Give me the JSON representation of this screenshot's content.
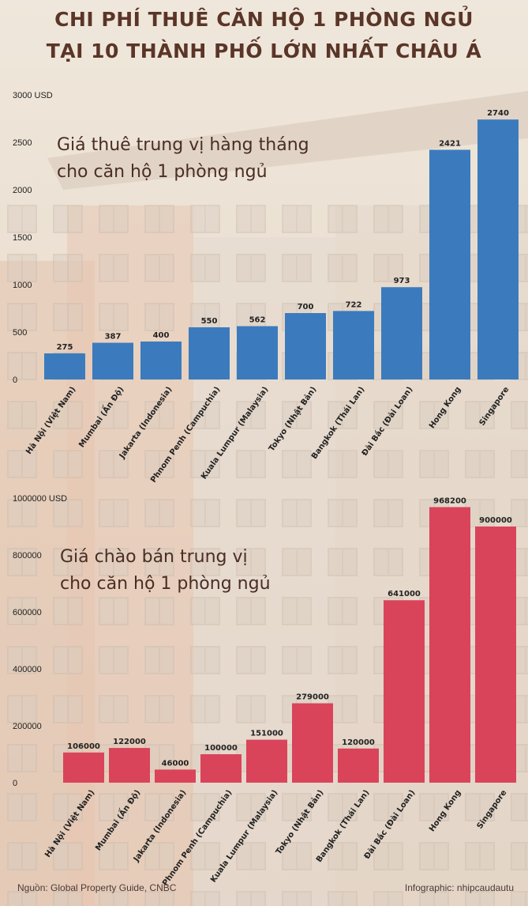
{
  "title_line1": "CHI PHÍ THUÊ CĂN HỘ 1 PHÒNG NGỦ",
  "title_line2": "TẠI 10 THÀNH PHỐ LỚN NHẤT CHÂU Á",
  "footer": {
    "source": "Nguồn: Global Property Guide, CNBC",
    "credit": "Infographic: nhipcaudautu"
  },
  "colors": {
    "rent_bar": "#3b7bbd",
    "sale_bar": "#d9445a",
    "title": "#5a3528"
  },
  "chart_data": [
    {
      "type": "bar",
      "title_line1": "Giá thuê trung vị hàng tháng",
      "title_line2": "cho căn hộ 1 phòng ngủ",
      "ylabel": "",
      "unit_label": "3000 USD",
      "ylim": [
        0,
        3000
      ],
      "yticks": [
        "0",
        "500",
        "1000",
        "1500",
        "2000",
        "2500"
      ],
      "ytick_values": [
        0,
        500,
        1000,
        1500,
        2000,
        2500
      ],
      "grid": false,
      "categories": [
        "Hà Nội (Việt Nam)",
        "Mumbai (Ấn Độ)",
        "Jakarta (Indonesia)",
        "Phnom Penh (Campuchia)",
        "Kuala Lumpur (Malaysia)",
        "Tokyo (Nhật Bản)",
        "Bangkok (Thái Lan)",
        "Đài Bắc (Đài Loan)",
        "Hong Kong",
        "Singapore"
      ],
      "values": [
        275,
        387,
        400,
        550,
        562,
        700,
        722,
        973,
        2421,
        2740
      ],
      "value_labels": [
        "275",
        "387",
        "400",
        "550",
        "562",
        "700",
        "722",
        "973",
        "2421",
        "2740"
      ]
    },
    {
      "type": "bar",
      "title_line1": "Giá chào bán trung vị",
      "title_line2": "cho căn hộ 1 phòng ngủ",
      "ylabel": "",
      "unit_label": "1000000 USD",
      "ylim": [
        0,
        1000000
      ],
      "yticks": [
        "0",
        "200000",
        "400000",
        "600000",
        "800000"
      ],
      "ytick_values": [
        0,
        200000,
        400000,
        600000,
        800000
      ],
      "grid": false,
      "categories": [
        "Hà Nội (Việt Nam)",
        "Mumbai (Ấn Độ)",
        "Jakarta (Indonesia)",
        "Phnom Penh (Campuchia)",
        "Kuala Lumpur (Malaysia)",
        "Tokyo (Nhật Bản)",
        "Bangkok (Thái Lan)",
        "Đài Bắc (Đài Loan)",
        "Hong Kong",
        "Singapore"
      ],
      "values": [
        106000,
        122000,
        46000,
        100000,
        151000,
        279000,
        120000,
        641000,
        968200,
        900000
      ],
      "value_labels": [
        "106000",
        "122000",
        "46000",
        "100000",
        "151000",
        "279000",
        "120000",
        "641000",
        "968200",
        "900000"
      ]
    }
  ]
}
